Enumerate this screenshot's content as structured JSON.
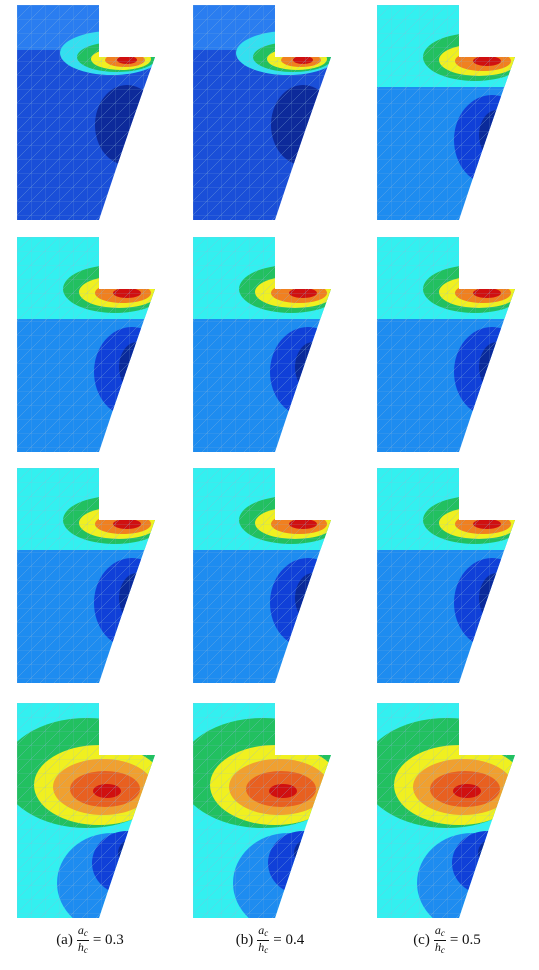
{
  "captions": [
    {
      "label": "(a)",
      "numerator": "a",
      "numerator_sub": "c",
      "denominator": "h",
      "denominator_sub": "c",
      "value": "= 0.3"
    },
    {
      "label": "(b)",
      "numerator": "a",
      "numerator_sub": "c",
      "denominator": "h",
      "denominator_sub": "c",
      "value": "= 0.4"
    },
    {
      "label": "(c)",
      "numerator": "a",
      "numerator_sub": "c",
      "denominator": "h",
      "denominator_sub": "c",
      "value": "= 0.5"
    }
  ]
}
